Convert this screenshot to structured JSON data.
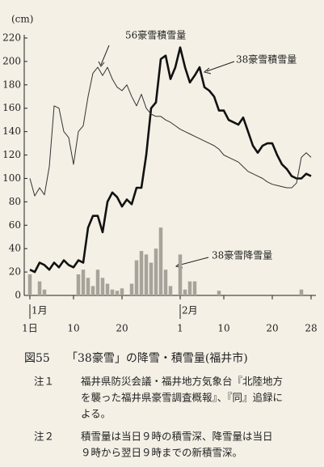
{
  "chart_data": {
    "type": "line",
    "y_label": "(cm)",
    "x": [
      1,
      2,
      3,
      4,
      5,
      6,
      7,
      8,
      9,
      10,
      11,
      12,
      13,
      14,
      15,
      16,
      17,
      18,
      19,
      20,
      21,
      22,
      23,
      24,
      25,
      26,
      27,
      28,
      29,
      30,
      31,
      32,
      33,
      34,
      35,
      36,
      37,
      38,
      39,
      40,
      41,
      42,
      43,
      44,
      45,
      46,
      47,
      48,
      49,
      50,
      51,
      52,
      53,
      54,
      55,
      56,
      57,
      58,
      59
    ],
    "xlim": [
      1,
      59
    ],
    "xticks": [
      {
        "value": 1,
        "label": "1日"
      },
      10,
      20,
      {
        "value": 32,
        "label": "1"
      },
      {
        "value": 41,
        "label": "10"
      },
      {
        "value": 51,
        "label": "20"
      },
      {
        "value": 59,
        "label": "28"
      }
    ],
    "month_labels": [
      {
        "value": 1,
        "label": "1月"
      },
      {
        "value": 32,
        "label": "2月"
      }
    ],
    "ylim": [
      0,
      220
    ],
    "yticks": [
      0,
      20,
      40,
      60,
      80,
      100,
      120,
      140,
      160,
      180,
      200,
      220
    ],
    "series": [
      {
        "name": "38豪雪積雪量",
        "color": "#111111",
        "values": [
          22,
          20,
          28,
          26,
          22,
          28,
          24,
          30,
          26,
          24,
          30,
          28,
          58,
          68,
          68,
          54,
          80,
          88,
          84,
          76,
          82,
          78,
          92,
          92,
          120,
          160,
          165,
          202,
          205,
          185,
          195,
          212,
          195,
          182,
          188,
          195,
          178,
          175,
          170,
          158,
          158,
          150,
          148,
          146,
          152,
          140,
          128,
          122,
          128,
          130,
          130,
          120,
          112,
          108,
          102,
          100,
          100,
          104,
          102
        ]
      },
      {
        "name": "56豪雪積雪量",
        "color": "#333333",
        "values": [
          100,
          85,
          92,
          86,
          110,
          162,
          160,
          140,
          135,
          112,
          140,
          145,
          170,
          190,
          195,
          188,
          195,
          185,
          178,
          175,
          180,
          170,
          162,
          172,
          160,
          155,
          153,
          153,
          150,
          148,
          145,
          142,
          140,
          138,
          136,
          134,
          132,
          130,
          128,
          125,
          120,
          118,
          116,
          114,
          110,
          106,
          104,
          102,
          100,
          97,
          95,
          94,
          93,
          92,
          92,
          96,
          118,
          122,
          118
        ]
      },
      {
        "name": "38豪雪降雪量",
        "type": "bar",
        "color": "#a8a39a",
        "values": [
          18,
          0,
          12,
          5,
          0,
          0,
          0,
          0,
          0,
          0,
          18,
          22,
          15,
          8,
          22,
          15,
          10,
          5,
          4,
          6,
          0,
          10,
          30,
          38,
          35,
          28,
          40,
          58,
          22,
          8,
          0,
          35,
          5,
          12,
          12,
          0,
          0,
          0,
          0,
          4,
          0,
          0,
          0,
          0,
          0,
          0,
          0,
          0,
          0,
          0,
          0,
          0,
          0,
          0,
          0,
          0,
          5,
          0,
          0
        ]
      }
    ]
  },
  "caption": {
    "label": "図55",
    "title": "「38豪雪」の降雪・積雪量(福井市)"
  },
  "notes": [
    {
      "label": "注１",
      "lines": [
        "福井県防災会議・福井地方気象台『北陸地方",
        "を襲った福井県豪雪調査概報』、『同』追録に",
        "よる。"
      ]
    },
    {
      "label": "注２",
      "lines": [
        "積雪量は当日９時の積雪深、降雪量は当日",
        "９時から翌日９時までの新積雪深。"
      ]
    }
  ]
}
